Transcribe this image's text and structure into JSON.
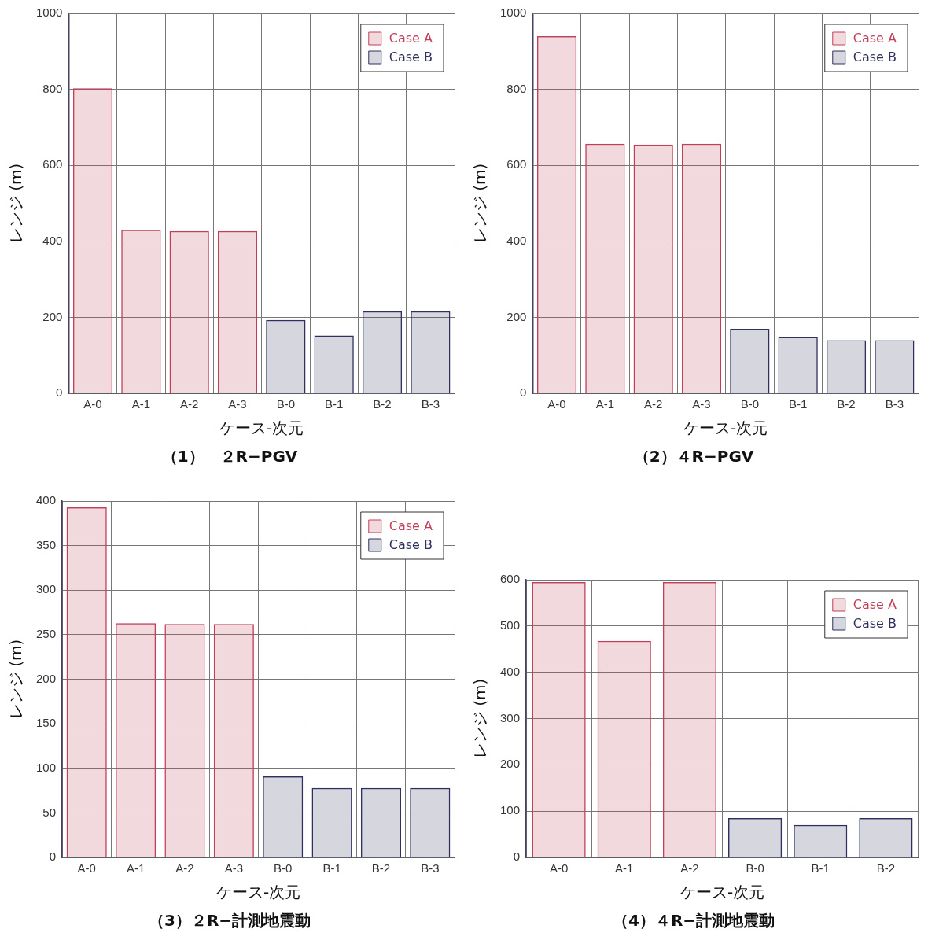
{
  "chart_data": [
    {
      "type": "bar",
      "title": "（1）　２R−PGV",
      "xlabel": "ケース-次元",
      "ylabel": "レンジ (m)",
      "categories": [
        "A-0",
        "A-1",
        "A-2",
        "A-3",
        "B-0",
        "B-1",
        "B-2",
        "B-3"
      ],
      "series": [
        {
          "name": "Case A",
          "color": "#c0405a",
          "values": [
            803,
            430,
            427,
            427,
            null,
            null,
            null,
            null
          ]
        },
        {
          "name": "Case B",
          "color": "#303060",
          "values": [
            null,
            null,
            null,
            null,
            193,
            152,
            216,
            216
          ]
        }
      ],
      "ylim": [
        0,
        1000
      ],
      "yticks": [
        0,
        200,
        400,
        600,
        800,
        1000
      ],
      "grid": true,
      "legend": "top right"
    },
    {
      "type": "bar",
      "title": "（2）４R−PGV",
      "xlabel": "ケース-次元",
      "ylabel": "レンジ (m)",
      "categories": [
        "A-0",
        "A-1",
        "A-2",
        "A-3",
        "B-0",
        "B-1",
        "B-2",
        "B-3"
      ],
      "series": [
        {
          "name": "Case A",
          "color": "#c0405a",
          "values": [
            940,
            657,
            655,
            657,
            null,
            null,
            null,
            null
          ]
        },
        {
          "name": "Case B",
          "color": "#303060",
          "values": [
            null,
            null,
            null,
            null,
            170,
            148,
            140,
            140
          ]
        }
      ],
      "ylim": [
        0,
        1000
      ],
      "yticks": [
        0,
        200,
        400,
        600,
        800,
        1000
      ],
      "grid": true,
      "legend": "top right"
    },
    {
      "type": "bar",
      "title": "（3）２R−計測地震動",
      "xlabel": "ケース-次元",
      "ylabel": "レンジ (m)",
      "categories": [
        "A-0",
        "A-1",
        "A-2",
        "A-3",
        "B-0",
        "B-1",
        "B-2",
        "B-3"
      ],
      "series": [
        {
          "name": "Case A",
          "color": "#c0405a",
          "values": [
            393,
            263,
            262,
            262,
            null,
            null,
            null,
            null
          ]
        },
        {
          "name": "Case B",
          "color": "#303060",
          "values": [
            null,
            null,
            null,
            null,
            91,
            78,
            78,
            78
          ]
        }
      ],
      "ylim": [
        0,
        400
      ],
      "yticks": [
        0,
        50,
        100,
        150,
        200,
        250,
        300,
        350,
        400
      ],
      "grid": true,
      "legend": "top right"
    },
    {
      "type": "bar",
      "title": "（4）４R−計測地震動",
      "xlabel": "ケース-次元",
      "ylabel": "レンジ (m)",
      "categories": [
        "A-0",
        "A-1",
        "A-2",
        "B-0",
        "B-1",
        "B-2"
      ],
      "series": [
        {
          "name": "Case A",
          "color": "#c0405a",
          "values": [
            595,
            468,
            595,
            null,
            null,
            null
          ]
        },
        {
          "name": "Case B",
          "color": "#303060",
          "values": [
            null,
            null,
            null,
            85,
            70,
            85
          ]
        }
      ],
      "ylim": [
        0,
        600
      ],
      "yticks": [
        0,
        100,
        200,
        300,
        400,
        500,
        600
      ],
      "grid": true,
      "legend": "top right"
    }
  ]
}
